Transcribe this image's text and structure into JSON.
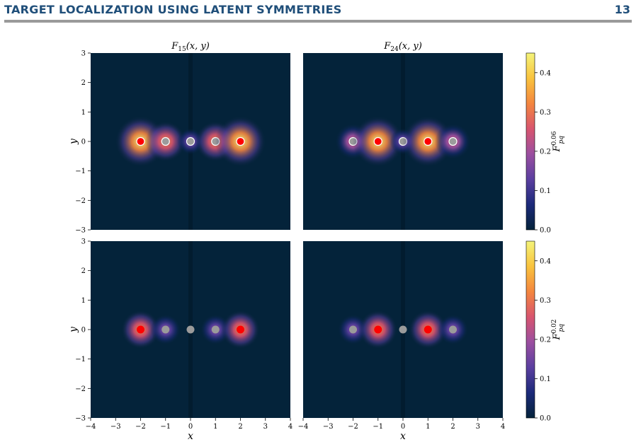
{
  "header": {
    "title": "TARGET LOCALIZATION USING LATENT SYMMETRIES",
    "page_number": "13"
  },
  "colors": {
    "background": "#04233a",
    "target_marker": "#ff0000",
    "other_marker": "#9b9b9b",
    "marker_ring": "#ffffff",
    "colormap": [
      "#04233a",
      "#1c2a7a",
      "#5b3fa0",
      "#9b4fa0",
      "#d8556f",
      "#f4863f",
      "#f9c33e",
      "#f4f47a"
    ]
  },
  "chart_data": {
    "type": "heatmap",
    "x_ticks": [
      "−4",
      "−3",
      "−2",
      "−1",
      "0",
      "1",
      "2",
      "3",
      "4"
    ],
    "y_ticks": [
      "−3",
      "−2",
      "−1",
      "0",
      "1",
      "2",
      "3"
    ],
    "xlim": [
      -4,
      4
    ],
    "ylim": [
      -3,
      3
    ],
    "xlabel": "x",
    "ylabel": "y",
    "column_titles": [
      "F15(x, y)",
      "F24(x, y)"
    ],
    "node_x": [
      -2,
      -1,
      0,
      1,
      2
    ],
    "rows": [
      {
        "colorbar_label": "F 0.06 pq",
        "colorbar_ticks": [
          "0.0",
          "0.1",
          "0.2",
          "0.3",
          "0.4"
        ],
        "colorbar_values": [
          0.0,
          0.1,
          0.2,
          0.3,
          0.4
        ],
        "colorbar_max": 0.45,
        "ringed": true,
        "panels": [
          {
            "targets": [
              1,
              5
            ],
            "node_intensity": [
              0.45,
              0.32,
              0.15,
              0.32,
              0.45
            ]
          },
          {
            "targets": [
              2,
              4
            ],
            "node_intensity": [
              0.27,
              0.45,
              0.15,
              0.45,
              0.27
            ]
          }
        ]
      },
      {
        "colorbar_label": "F 0.02 pq",
        "colorbar_ticks": [
          "0.0",
          "0.1",
          "0.2",
          "0.3",
          "0.4"
        ],
        "colorbar_values": [
          0.0,
          0.1,
          0.2,
          0.3,
          0.4
        ],
        "colorbar_max": 0.45,
        "ringed": false,
        "panels": [
          {
            "targets": [
              1,
              5
            ],
            "node_intensity": [
              0.3,
              0.2,
              0.0,
              0.2,
              0.3
            ]
          },
          {
            "targets": [
              2,
              4
            ],
            "node_intensity": [
              0.2,
              0.3,
              0.0,
              0.3,
              0.2
            ]
          }
        ]
      }
    ]
  }
}
